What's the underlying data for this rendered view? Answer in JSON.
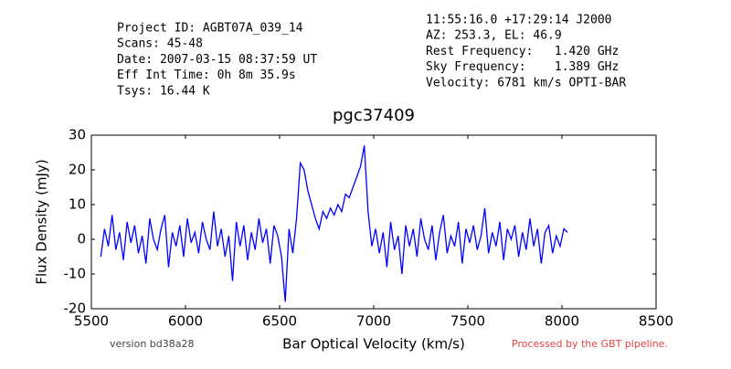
{
  "header": {
    "left": [
      "Project ID: AGBT07A_039_14",
      "Scans: 45-48",
      "Date: 2007-03-15 08:37:59 UT",
      "Eff Int Time: 0h 8m 35.9s",
      "Tsys: 16.44 K"
    ],
    "right": [
      "11:55:16.0 +17:29:14 J2000",
      "AZ: 253.3, EL: 46.9",
      "Rest Frequency:   1.420 GHz",
      "Sky Frequency:    1.389 GHz",
      "Velocity: 6781 km/s OPTI-BAR"
    ]
  },
  "footer": {
    "version": "version bd38a28",
    "pipeline": "Processed by the GBT pipeline."
  },
  "chart_data": {
    "type": "line",
    "title": "pgc37409",
    "x_label": "Bar Optical Velocity (km/s)",
    "y_label": "Flux Density (mJy)",
    "xlim": [
      5500,
      8500
    ],
    "ylim": [
      -20,
      30
    ],
    "xticks": [
      5500,
      6000,
      6500,
      7000,
      7500,
      8000,
      8500
    ],
    "yticks": [
      -20,
      -10,
      0,
      10,
      20,
      30
    ],
    "x": [
      5550,
      5570,
      5590,
      5610,
      5630,
      5650,
      5670,
      5690,
      5710,
      5730,
      5750,
      5770,
      5790,
      5810,
      5830,
      5850,
      5870,
      5890,
      5910,
      5930,
      5950,
      5970,
      5990,
      6010,
      6030,
      6050,
      6070,
      6090,
      6110,
      6130,
      6150,
      6170,
      6190,
      6210,
      6230,
      6250,
      6270,
      6290,
      6310,
      6330,
      6350,
      6370,
      6390,
      6410,
      6430,
      6450,
      6470,
      6490,
      6510,
      6530,
      6550,
      6570,
      6590,
      6610,
      6630,
      6650,
      6670,
      6690,
      6710,
      6730,
      6750,
      6770,
      6790,
      6810,
      6830,
      6850,
      6870,
      6890,
      6910,
      6930,
      6950,
      6970,
      6990,
      7010,
      7030,
      7050,
      7070,
      7090,
      7110,
      7130,
      7150,
      7170,
      7190,
      7210,
      7230,
      7250,
      7270,
      7290,
      7310,
      7330,
      7350,
      7370,
      7390,
      7410,
      7430,
      7450,
      7470,
      7490,
      7510,
      7530,
      7550,
      7570,
      7590,
      7610,
      7630,
      7650,
      7670,
      7690,
      7710,
      7730,
      7750,
      7770,
      7790,
      7810,
      7830,
      7850,
      7870,
      7890,
      7910,
      7930,
      7950,
      7970,
      7990,
      8010,
      8030
    ],
    "series": [
      {
        "color": "#0000ff",
        "values": [
          -5,
          3,
          -2,
          7,
          -3,
          2,
          -6,
          5,
          -1,
          4,
          -4,
          1,
          -7,
          6,
          0,
          -3,
          3,
          7,
          -8,
          2,
          -2,
          4,
          -5,
          6,
          -1,
          2,
          -4,
          5,
          0,
          -3,
          8,
          -2,
          3,
          -5,
          1,
          -12,
          5,
          -2,
          4,
          -6,
          2,
          -3,
          6,
          -1,
          3,
          -7,
          4,
          1,
          -5,
          -18,
          3,
          -4,
          6,
          22,
          20,
          14,
          10,
          6,
          3,
          8,
          6,
          9,
          7,
          10,
          8,
          13,
          12,
          15,
          18,
          21,
          27,
          8,
          -2,
          3,
          -4,
          2,
          -8,
          5,
          -3,
          1,
          -10,
          4,
          -2,
          3,
          -5,
          6,
          0,
          -3,
          4,
          -6,
          2,
          7,
          -4,
          1,
          -2,
          5,
          -7,
          3,
          -1,
          4,
          -3,
          1,
          9,
          -4,
          2,
          -2,
          5,
          -6,
          3,
          0,
          4,
          -5,
          2,
          -3,
          6,
          -2,
          3,
          -7,
          2,
          4,
          -4,
          1,
          -2,
          3,
          2
        ]
      }
    ]
  }
}
